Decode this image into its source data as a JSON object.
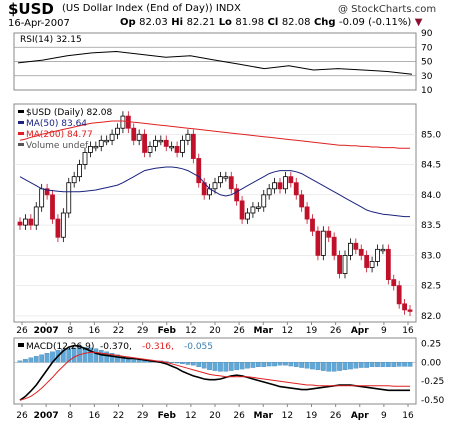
{
  "header": {
    "symbol": "$USD",
    "description": "(US Dollar Index (End of Day)) INDX",
    "date": "16-Apr-2007",
    "op_label": "Op",
    "op_value": "82.03",
    "hi_label": "Hi",
    "hi_value": "82.21",
    "lo_label": "Lo",
    "lo_value": "81.98",
    "cl_label": "Cl",
    "cl_value": "82.08",
    "chg_label": "Chg",
    "chg_value": "-0.09 (-0.11%)",
    "brand": "@ StockCharts.com"
  },
  "colors": {
    "up": "#000000",
    "down": "#c0102a",
    "ma50": "#1a237e",
    "ma200": "#e02020",
    "rsi": "#000000",
    "macd_hist": "#5fa8d8",
    "signal": "#e02020"
  },
  "chart_data": [
    {
      "type": "line",
      "name_label": "RSI(14) 32.15",
      "ylim": [
        10,
        90
      ],
      "yticks": [
        90,
        70,
        50,
        30,
        10
      ],
      "reference_lines": [
        70,
        50,
        30
      ],
      "x": [
        "Dec 26",
        "Jan 2",
        "Jan 8",
        "Jan 16",
        "Jan 22",
        "Jan 29",
        "Feb 5",
        "Feb 12",
        "Feb 20",
        "Feb 26",
        "Mar 5",
        "Mar 12",
        "Mar 19",
        "Mar 26",
        "Apr 2",
        "Apr 9",
        "Apr 16"
      ],
      "values": [
        48,
        52,
        58,
        62,
        64,
        60,
        56,
        58,
        52,
        46,
        40,
        44,
        38,
        40,
        38,
        36,
        32
      ]
    },
    {
      "type": "candlestick",
      "legend": [
        "$USD (Daily) 82.08",
        "MA(50) 83.64",
        "MA(200) 84.77",
        "Volume undef"
      ],
      "ylim": [
        81.9,
        85.5
      ],
      "yticks": [
        85.0,
        84.5,
        84.0,
        83.5,
        83.0,
        82.5,
        82.0
      ],
      "x_ticks": [
        "26",
        "2007",
        "8",
        "16",
        "22",
        "29",
        "Feb",
        "12",
        "20",
        "26",
        "Mar",
        "12",
        "19",
        "26",
        "Apr",
        "9",
        "16"
      ],
      "close": [
        83.5,
        83.6,
        83.5,
        83.8,
        84.1,
        84.0,
        83.6,
        83.3,
        83.7,
        84.2,
        84.3,
        84.5,
        84.7,
        84.8,
        84.8,
        84.9,
        84.9,
        85.0,
        85.1,
        85.3,
        85.1,
        84.9,
        85.0,
        84.7,
        84.8,
        84.9,
        84.9,
        84.8,
        84.8,
        84.7,
        84.9,
        85.0,
        84.6,
        84.2,
        84.0,
        84.1,
        84.2,
        84.3,
        84.3,
        84.1,
        83.9,
        83.6,
        83.7,
        83.8,
        83.8,
        84.0,
        84.1,
        84.2,
        84.1,
        84.3,
        84.2,
        84.0,
        83.8,
        83.6,
        83.4,
        83.0,
        83.4,
        83.3,
        83.0,
        82.7,
        83.0,
        83.2,
        83.1,
        83.0,
        82.8,
        82.9,
        83.1,
        83.1,
        82.6,
        82.5,
        82.2,
        82.1,
        82.08
      ],
      "ma50": [
        84.3,
        84.25,
        84.2,
        84.15,
        84.1,
        84.08,
        84.07,
        84.06,
        84.05,
        84.05,
        84.05,
        84.05,
        84.06,
        84.07,
        84.08,
        84.1,
        84.12,
        84.14,
        84.16,
        84.2,
        84.25,
        84.3,
        84.35,
        84.4,
        84.42,
        84.44,
        84.45,
        84.46,
        84.46,
        84.45,
        84.43,
        84.4,
        84.35,
        84.3,
        84.2,
        84.1,
        84.05,
        84.0,
        83.98,
        84.0,
        84.05,
        84.1,
        84.15,
        84.2,
        84.25,
        84.3,
        84.35,
        84.38,
        84.4,
        84.4,
        84.4,
        84.38,
        84.35,
        84.3,
        84.25,
        84.2,
        84.15,
        84.1,
        84.05,
        84.0,
        83.95,
        83.9,
        83.85,
        83.8,
        83.75,
        83.72,
        83.7,
        83.68,
        83.67,
        83.66,
        83.65,
        83.64,
        83.64
      ],
      "ma200": [
        84.9,
        84.92,
        84.95,
        84.97,
        85.0,
        85.02,
        85.04,
        85.06,
        85.08,
        85.1,
        85.12,
        85.14,
        85.16,
        85.18,
        85.19,
        85.2,
        85.21,
        85.22,
        85.22,
        85.22,
        85.21,
        85.2,
        85.19,
        85.18,
        85.17,
        85.16,
        85.15,
        85.14,
        85.13,
        85.12,
        85.11,
        85.1,
        85.09,
        85.08,
        85.07,
        85.06,
        85.05,
        85.04,
        85.03,
        85.02,
        85.01,
        85.0,
        84.99,
        84.98,
        84.97,
        84.96,
        84.95,
        84.94,
        84.93,
        84.92,
        84.91,
        84.9,
        84.89,
        84.88,
        84.87,
        84.86,
        84.85,
        84.84,
        84.83,
        84.82,
        84.82,
        84.81,
        84.81,
        84.8,
        84.8,
        84.79,
        84.79,
        84.78,
        84.78,
        84.78,
        84.77,
        84.77,
        84.77
      ]
    },
    {
      "type": "bar",
      "name_label": "MACD(12,26,9)",
      "values_label": "-0.370, -0.316, -0.055",
      "ylim": [
        -0.55,
        0.32
      ],
      "yticks": [
        0.25,
        0.0,
        -0.25,
        -0.5
      ],
      "x_ticks": [
        "26",
        "2007",
        "8",
        "16",
        "22",
        "29",
        "Feb",
        "12",
        "20",
        "26",
        "Mar",
        "12",
        "19",
        "26",
        "Apr",
        "9",
        "16"
      ],
      "histogram": [
        0.02,
        0.04,
        0.06,
        0.08,
        0.1,
        0.12,
        0.14,
        0.16,
        0.17,
        0.18,
        0.19,
        0.2,
        0.2,
        0.19,
        0.18,
        0.16,
        0.14,
        0.12,
        0.1,
        0.08,
        0.06,
        0.05,
        0.04,
        0.03,
        0.03,
        0.02,
        0.02,
        0.01,
        0.0,
        -0.01,
        -0.02,
        -0.03,
        -0.04,
        -0.06,
        -0.08,
        -0.1,
        -0.11,
        -0.12,
        -0.12,
        -0.11,
        -0.1,
        -0.09,
        -0.08,
        -0.07,
        -0.06,
        -0.06,
        -0.05,
        -0.05,
        -0.04,
        -0.04,
        -0.05,
        -0.06,
        -0.07,
        -0.08,
        -0.09,
        -0.1,
        -0.11,
        -0.12,
        -0.12,
        -0.11,
        -0.1,
        -0.09,
        -0.08,
        -0.07,
        -0.07,
        -0.06,
        -0.06,
        -0.06,
        -0.06,
        -0.06,
        -0.055,
        -0.055,
        -0.055
      ],
      "macd": [
        -0.5,
        -0.45,
        -0.38,
        -0.3,
        -0.2,
        -0.1,
        0.0,
        0.08,
        0.15,
        0.2,
        0.22,
        0.21,
        0.18,
        0.15,
        0.12,
        0.1,
        0.09,
        0.08,
        0.07,
        0.06,
        0.05,
        0.05,
        0.04,
        0.03,
        0.02,
        0.01,
        0.0,
        -0.02,
        -0.05,
        -0.08,
        -0.12,
        -0.15,
        -0.18,
        -0.2,
        -0.22,
        -0.23,
        -0.23,
        -0.22,
        -0.2,
        -0.18,
        -0.17,
        -0.18,
        -0.2,
        -0.22,
        -0.24,
        -0.26,
        -0.28,
        -0.3,
        -0.32,
        -0.33,
        -0.34,
        -0.35,
        -0.36,
        -0.36,
        -0.35,
        -0.34,
        -0.33,
        -0.32,
        -0.31,
        -0.3,
        -0.3,
        -0.3,
        -0.31,
        -0.32,
        -0.33,
        -0.34,
        -0.35,
        -0.36,
        -0.37,
        -0.37,
        -0.37,
        -0.37,
        -0.37
      ],
      "signal": [
        -0.5,
        -0.48,
        -0.45,
        -0.4,
        -0.34,
        -0.27,
        -0.2,
        -0.12,
        -0.05,
        0.02,
        0.07,
        0.1,
        0.12,
        0.13,
        0.13,
        0.12,
        0.11,
        0.1,
        0.09,
        0.08,
        0.07,
        0.06,
        0.05,
        0.04,
        0.03,
        0.02,
        0.01,
        0.0,
        -0.02,
        -0.04,
        -0.06,
        -0.08,
        -0.1,
        -0.12,
        -0.14,
        -0.16,
        -0.17,
        -0.18,
        -0.19,
        -0.19,
        -0.19,
        -0.19,
        -0.19,
        -0.2,
        -0.21,
        -0.22,
        -0.23,
        -0.24,
        -0.25,
        -0.26,
        -0.27,
        -0.28,
        -0.29,
        -0.3,
        -0.3,
        -0.31,
        -0.31,
        -0.31,
        -0.31,
        -0.31,
        -0.31,
        -0.31,
        -0.31,
        -0.31,
        -0.31,
        -0.31,
        -0.31,
        -0.31,
        -0.31,
        -0.316,
        -0.316,
        -0.316,
        -0.316
      ]
    }
  ]
}
